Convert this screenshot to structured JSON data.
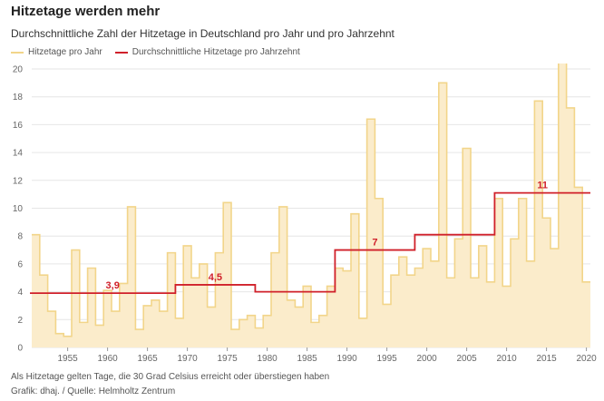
{
  "header": {
    "title": "Hitzetage werden mehr",
    "subtitle": "Durchschnittliche Zahl der Hitzetage in Deutschland pro Jahr und pro Jahrzehnt"
  },
  "legend": {
    "yearly": "Hitzetage pro Jahr",
    "decadal": "Durchschnittliche Hitzetage pro Jahrzehnt"
  },
  "footer": {
    "note": "Als Hitzetage gelten Tage, die 30 Grad Celsius erreicht oder überstiegen haben",
    "source": "Grafik: dhaj. / Quelle: Helmholtz Zentrum"
  },
  "colors": {
    "yearly_line": "#f2d58a",
    "yearly_fill": "#fbeccb",
    "decadal_line": "#d0202a",
    "grid": "#e6e6e6",
    "axis_text": "#666666"
  },
  "chart_data": {
    "type": "area",
    "title": "Hitzetage werden mehr",
    "xlim": [
      1951,
      2021
    ],
    "ylim": [
      0,
      20
    ],
    "yticks": [
      0,
      2,
      4,
      6,
      8,
      10,
      12,
      14,
      16,
      18,
      20
    ],
    "xticks": [
      1955,
      1960,
      1965,
      1970,
      1975,
      1980,
      1985,
      1990,
      1995,
      2000,
      2005,
      2010,
      2015,
      2020
    ],
    "grid": "horizontal",
    "legend_position": "top-left",
    "series": [
      {
        "name": "Hitzetage pro Jahr",
        "style": "step-area",
        "x": [
          1951,
          1952,
          1953,
          1954,
          1955,
          1956,
          1957,
          1958,
          1959,
          1960,
          1961,
          1962,
          1963,
          1964,
          1965,
          1966,
          1967,
          1968,
          1969,
          1970,
          1971,
          1972,
          1973,
          1974,
          1975,
          1976,
          1977,
          1978,
          1979,
          1980,
          1981,
          1982,
          1983,
          1984,
          1985,
          1986,
          1987,
          1988,
          1989,
          1990,
          1991,
          1992,
          1993,
          1994,
          1995,
          1996,
          1997,
          1998,
          1999,
          2000,
          2001,
          2002,
          2003,
          2004,
          2005,
          2006,
          2007,
          2008,
          2009,
          2010,
          2011,
          2012,
          2013,
          2014,
          2015,
          2016,
          2017,
          2018,
          2019,
          2020
        ],
        "values": [
          8.1,
          5.2,
          2.6,
          1.0,
          0.8,
          7.0,
          1.8,
          5.7,
          1.6,
          4.1,
          2.6,
          4.6,
          10.1,
          1.3,
          3.0,
          3.4,
          2.6,
          6.8,
          2.1,
          7.3,
          5.0,
          6.0,
          2.9,
          6.8,
          10.4,
          1.3,
          2.0,
          2.3,
          1.4,
          2.3,
          6.8,
          10.1,
          3.4,
          2.9,
          4.4,
          1.8,
          2.3,
          4.4,
          5.7,
          5.5,
          9.6,
          2.1,
          16.4,
          10.7,
          3.1,
          5.2,
          6.5,
          5.2,
          5.7,
          7.1,
          6.2,
          19.0,
          5.0,
          7.8,
          14.3,
          5.0,
          7.3,
          4.7,
          10.7,
          4.4,
          7.8,
          10.7,
          6.2,
          17.7,
          9.3,
          7.1,
          20.5,
          17.2,
          11.5,
          4.7
        ]
      },
      {
        "name": "Durchschnittliche Hitzetage pro Jahrzehnt",
        "style": "step-line",
        "segments": [
          {
            "from": 1950,
            "to": 1969,
            "value": 3.9,
            "label": "3,9"
          },
          {
            "from": 1969,
            "to": 1979,
            "value": 4.5,
            "label": "4,5"
          },
          {
            "from": 1979,
            "to": 1989,
            "value": 4.0
          },
          {
            "from": 1989,
            "to": 1999,
            "value": 7.0,
            "label": "7"
          },
          {
            "from": 1999,
            "to": 2009,
            "value": 8.1
          },
          {
            "from": 2009,
            "to": 2021,
            "value": 11.1,
            "label": "11"
          }
        ]
      }
    ]
  }
}
